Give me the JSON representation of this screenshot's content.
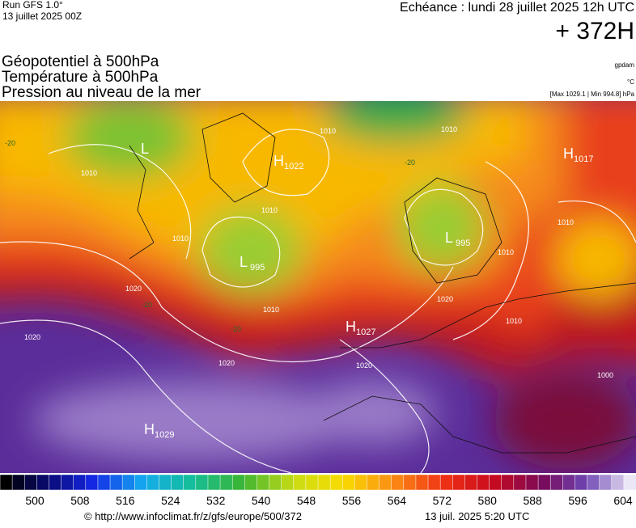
{
  "header": {
    "model": "Run GFS 1.0°",
    "run": "13 juillet 2025 00Z",
    "valid": "Echéance : lundi 28 juillet 2025 12h UTC",
    "lead": "+ 372H"
  },
  "titles": [
    "Géopotentiel à 500hPa",
    "Température à 500hPa",
    "Pression au niveau de la mer"
  ],
  "units": {
    "geopotential": "gpdam",
    "temperature": "°C",
    "pressure": "[Max 1029.1 | Min 994.8] hPa"
  },
  "centers": [
    {
      "letter": "H",
      "value": "1022"
    },
    {
      "letter": "L",
      "value": "995"
    },
    {
      "letter": "H",
      "value": "1027"
    },
    {
      "letter": "H",
      "value": "1029"
    },
    {
      "letter": "L",
      "value": "995"
    },
    {
      "letter": "H",
      "value": "1017"
    },
    {
      "letter": "L",
      "value": null
    }
  ],
  "isobar_labels": [
    "1010",
    "1010",
    "1010",
    "1010",
    "1010",
    "1010",
    "1010",
    "1010",
    "1020",
    "1020",
    "1020",
    "1020",
    "1020",
    "1010",
    "1000"
  ],
  "temperature_labels": [
    "-20",
    "-20",
    "-20",
    "-20"
  ],
  "colorbar": {
    "labels": [
      500,
      508,
      516,
      524,
      532,
      540,
      548,
      556,
      564,
      572,
      580,
      588,
      596,
      604
    ]
  },
  "footer": {
    "source": "© http://www.infoclimat.fr/z/gfs/europe/500/372",
    "generated": "13 juil. 2025  5:20 UTC"
  }
}
